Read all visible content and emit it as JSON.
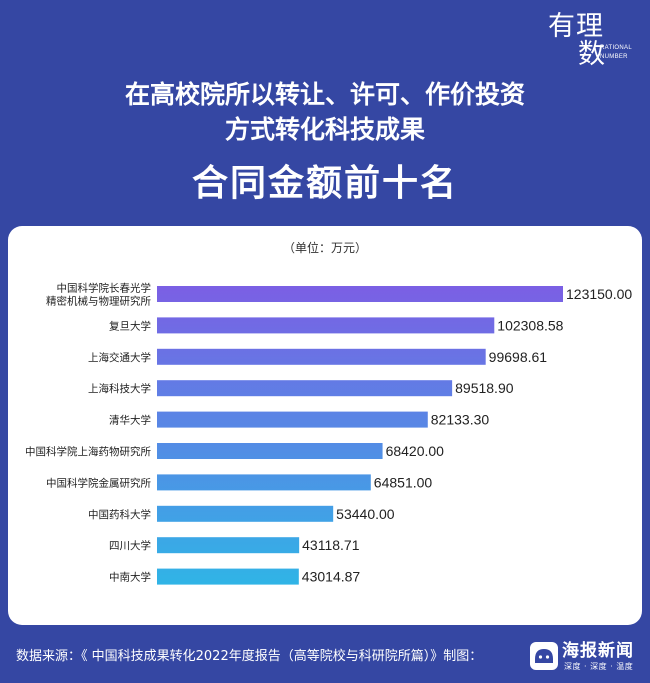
{
  "logo": {
    "main_top": "有理",
    "main_bottom": "数",
    "sub_line1": "RATIONAL",
    "sub_line2": "NUMBER"
  },
  "title": {
    "line1": "在高校院所以转让、许可、作价投资",
    "line2": "方式转化科技成果",
    "line3": "合同金额前十名"
  },
  "unit_label": "（单位：万元）",
  "colors": {
    "background": "#3547a3",
    "card": "#ffffff",
    "gradient_top": "#7b5fe4",
    "gradient_bottom": "#30b4e6"
  },
  "chart_data": {
    "type": "bar",
    "orientation": "horizontal",
    "categories": [
      [
        "中国科学院长春光学",
        "精密机械与物理研究所"
      ],
      [
        "复旦大学"
      ],
      [
        "上海交通大学"
      ],
      [
        "上海科技大学"
      ],
      [
        "清华大学"
      ],
      [
        "中国科学院上海药物研究所"
      ],
      [
        "中国科学院金属研究所"
      ],
      [
        "中国药科大学"
      ],
      [
        "四川大学"
      ],
      [
        "中南大学"
      ]
    ],
    "values": [
      123150.0,
      102308.58,
      99698.61,
      89518.9,
      82133.3,
      68420.0,
      64851.0,
      53440.0,
      43118.71,
      43014.87
    ],
    "value_labels": [
      "123150.00",
      "102308.58",
      "99698.61",
      "89518.90",
      "82133.30",
      "68420.00",
      "64851.00",
      "53440.00",
      "43118.71",
      "43014.87"
    ],
    "xlim": [
      0,
      123150
    ],
    "grid": false,
    "legend": "none"
  },
  "footer": {
    "source": "数据来源：《 中国科技成果转化2022年度报告（高等院校与科研院所篇）》制图：",
    "brand_name": "海报新闻",
    "brand_slogan": "深度 · 深度 · 温度"
  }
}
